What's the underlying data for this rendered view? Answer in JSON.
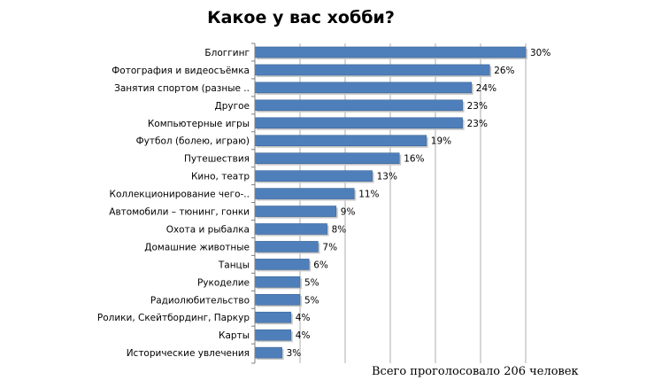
{
  "chart_data": {
    "type": "bar",
    "orientation": "horizontal",
    "title": "Какое у вас хобби?",
    "categories": [
      "Блоггинг",
      "Фотография и видеосъёмка",
      "Занятия спортом (разные ..",
      "Другое",
      "Компьютерные игры",
      "Футбол (болею, играю)",
      "Путешествия",
      "Кино, театр",
      "Коллекционирование чего-..",
      "Автомобили – тюнинг, гонки",
      "Охота и рыбалка",
      "Домашние животные",
      "Танцы",
      "Рукоделие",
      "Радиолюбительство",
      "Ролики, Скейтбординг, Паркур",
      "Карты",
      "Исторические увлечения"
    ],
    "values": [
      30,
      26,
      24,
      23,
      23,
      19,
      16,
      13,
      11,
      9,
      8,
      7,
      6,
      5,
      5,
      4,
      4,
      3
    ],
    "value_labels": [
      "30%",
      "26%",
      "24%",
      "23%",
      "23%",
      "19%",
      "16%",
      "13%",
      "11%",
      "9%",
      "8%",
      "7%",
      "6%",
      "5%",
      "5%",
      "4%",
      "4%",
      "3%"
    ],
    "xlim": [
      0,
      30
    ],
    "grid": true,
    "legend": false,
    "bar_color": "#4f7fbb"
  },
  "footnote": "Всего проголосовало 206 человек"
}
